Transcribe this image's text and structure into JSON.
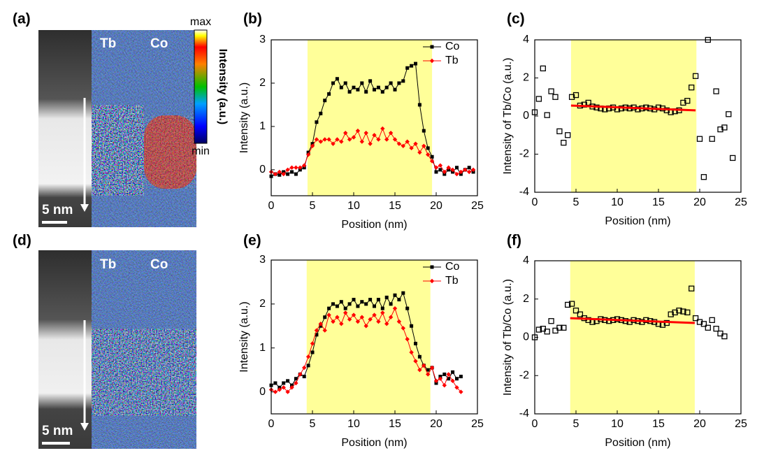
{
  "images": [
    {
      "label": "(a)",
      "maps": [
        "Tb",
        "Co"
      ],
      "scale": "5 nm"
    },
    {
      "label": "(d)",
      "maps": [
        "Tb",
        "Co"
      ],
      "scale": "5 nm"
    }
  ],
  "colorbar": {
    "max": "max",
    "min": "min",
    "title": "Intensity (a.u.)"
  },
  "chart_data": [
    {
      "type": "line",
      "panel": "(b)",
      "xlabel": "Position (nm)",
      "ylabel": "Intensity (a.u.)",
      "xlim": [
        0,
        25
      ],
      "xticks": [
        0,
        5,
        10,
        15,
        20,
        25
      ],
      "ylim": [
        -0.6,
        3
      ],
      "yticks": [
        0,
        1,
        2,
        3
      ],
      "highlight": {
        "x": [
          4.4,
          19.5
        ],
        "color": "#ffff99"
      },
      "legend": "upper right",
      "x": [
        0,
        0.5,
        1,
        1.5,
        2,
        2.5,
        3,
        3.5,
        4,
        4.5,
        5,
        5.5,
        6,
        6.5,
        7,
        7.5,
        8,
        8.5,
        9,
        9.5,
        10,
        10.5,
        11,
        11.5,
        12,
        12.5,
        13,
        13.5,
        14,
        14.5,
        15,
        15.5,
        16,
        16.5,
        17,
        17.5,
        18,
        18.5,
        19,
        19.5,
        20,
        20.5,
        21,
        21.5,
        22,
        22.5,
        23,
        23.5,
        24,
        24.5
      ],
      "series": [
        {
          "name": "Co",
          "color": "#000000",
          "marker": "square",
          "values": [
            -0.15,
            -0.1,
            -0.12,
            -0.05,
            -0.1,
            -0.05,
            -0.1,
            0,
            0.05,
            0.4,
            0.6,
            1.1,
            1.3,
            1.6,
            1.75,
            2.0,
            2.1,
            1.9,
            2.0,
            1.8,
            1.9,
            1.85,
            2.0,
            1.8,
            2.05,
            1.85,
            1.9,
            1.8,
            1.9,
            2.0,
            1.85,
            2.0,
            2.05,
            2.35,
            2.4,
            2.45,
            1.5,
            0.9,
            0.5,
            0.3,
            -0.05,
            0,
            -0.1,
            0,
            -0.05,
            0.05,
            -0.1,
            0,
            0.05,
            -0.05
          ]
        },
        {
          "name": "Tb",
          "color": "#ff0000",
          "marker": "diamond",
          "values": [
            -0.05,
            -0.1,
            -0.05,
            -0.1,
            0,
            0.05,
            0.05,
            0.05,
            0.1,
            0.35,
            0.55,
            0.7,
            0.65,
            0.7,
            0.7,
            0.6,
            0.7,
            0.65,
            0.85,
            0.7,
            0.75,
            0.9,
            0.65,
            0.85,
            0.6,
            0.8,
            0.7,
            0.95,
            0.7,
            0.85,
            0.7,
            0.6,
            0.55,
            0.65,
            0.5,
            0.6,
            0.4,
            0.55,
            0.35,
            0.2,
            0.05,
            0.1,
            -0.05,
            0.05,
            0,
            -0.1,
            -0.05,
            0,
            -0.05,
            0
          ]
        }
      ]
    },
    {
      "type": "scatter",
      "panel": "(c)",
      "xlabel": "Position (nm)",
      "ylabel": "Intensity of Tb/Co (a.u.)",
      "xlim": [
        0,
        25
      ],
      "xticks": [
        0,
        5,
        10,
        15,
        20,
        25
      ],
      "ylim": [
        -4,
        4
      ],
      "yticks": [
        -4,
        -2,
        0,
        2,
        4
      ],
      "highlight": {
        "x": [
          4.4,
          19.6
        ],
        "color": "#ffff99"
      },
      "x": [
        0,
        0.5,
        1,
        1.5,
        2,
        2.5,
        3,
        3.5,
        4,
        4.5,
        5,
        5.5,
        6,
        6.5,
        7,
        7.5,
        8,
        8.5,
        9,
        9.5,
        10,
        10.5,
        11,
        11.5,
        12,
        12.5,
        13,
        13.5,
        14,
        14.5,
        15,
        15.5,
        16,
        16.5,
        17,
        17.5,
        18,
        18.5,
        19,
        19.5,
        20,
        20.5,
        21,
        21.5,
        22,
        22.5,
        23,
        23.5,
        24
      ],
      "series": [
        {
          "color": "#000000",
          "marker": "open-square",
          "values": [
            0.2,
            0.9,
            2.5,
            0.05,
            1.3,
            1.0,
            -0.8,
            -1.4,
            -1.0,
            1.0,
            1.1,
            0.55,
            0.6,
            0.7,
            0.5,
            0.45,
            0.4,
            0.35,
            0.4,
            0.45,
            0.35,
            0.4,
            0.45,
            0.4,
            0.45,
            0.35,
            0.4,
            0.45,
            0.4,
            0.35,
            0.45,
            0.4,
            0.3,
            0.2,
            0.25,
            0.3,
            0.7,
            0.8,
            1.5,
            2.1,
            -1.2,
            -3.2,
            4.0,
            -1.2,
            1.3,
            -0.7,
            -0.6,
            0.1,
            -2.2
          ]
        }
      ],
      "fit": {
        "x": [
          4.4,
          19.5
        ],
        "y": [
          0.55,
          0.3
        ],
        "color": "#ff0000"
      }
    },
    {
      "type": "line",
      "panel": "(e)",
      "xlabel": "Position (nm)",
      "ylabel": "Intensity (a.u.)",
      "xlim": [
        0,
        25
      ],
      "xticks": [
        0,
        5,
        10,
        15,
        20,
        25
      ],
      "ylim": [
        -0.5,
        3
      ],
      "yticks": [
        0,
        1,
        2,
        3
      ],
      "highlight": {
        "x": [
          4.3,
          19.3
        ],
        "color": "#ffff99"
      },
      "legend": "upper right",
      "x": [
        0,
        0.5,
        1,
        1.5,
        2,
        2.5,
        3,
        3.5,
        4,
        4.5,
        5,
        5.5,
        6,
        6.5,
        7,
        7.5,
        8,
        8.5,
        9,
        9.5,
        10,
        10.5,
        11,
        11.5,
        12,
        12.5,
        13,
        13.5,
        14,
        14.5,
        15,
        15.5,
        16,
        16.5,
        17,
        17.5,
        18,
        18.5,
        19,
        19.5,
        20,
        20.5,
        21,
        21.5,
        22,
        22.5,
        23
      ],
      "series": [
        {
          "name": "Co",
          "color": "#000000",
          "marker": "square",
          "values": [
            0.15,
            0.2,
            0.1,
            0.2,
            0.25,
            0.15,
            0.3,
            0.4,
            0.35,
            0.6,
            0.9,
            1.3,
            1.5,
            1.7,
            1.9,
            2.0,
            1.95,
            2.05,
            1.9,
            2.0,
            2.1,
            1.95,
            2.05,
            2.0,
            2.1,
            1.95,
            2.1,
            1.9,
            2.15,
            2.0,
            2.2,
            2.1,
            2.25,
            1.9,
            1.5,
            1.1,
            0.8,
            0.6,
            0.5,
            0.55,
            0.2,
            0.35,
            0.4,
            0.3,
            0.45,
            0.3,
            0.35
          ]
        },
        {
          "name": "Tb",
          "color": "#ff0000",
          "marker": "diamond",
          "values": [
            0.05,
            0.0,
            0.05,
            0.1,
            0.0,
            0.1,
            0.2,
            0.4,
            0.55,
            0.8,
            1.1,
            1.4,
            1.55,
            1.4,
            1.75,
            1.6,
            1.7,
            1.55,
            1.8,
            1.65,
            1.75,
            1.6,
            1.7,
            1.5,
            1.65,
            1.75,
            1.6,
            1.8,
            1.55,
            1.7,
            1.9,
            1.6,
            1.45,
            1.2,
            0.9,
            0.7,
            0.5,
            0.6,
            0.4,
            0.55,
            0.25,
            0.3,
            0.15,
            0.4,
            0.25,
            0.1,
            0.0
          ]
        }
      ]
    },
    {
      "type": "scatter",
      "panel": "(f)",
      "xlabel": "Position (nm)",
      "ylabel": "Intensity of Tb/Co (a.u.)",
      "xlim": [
        0,
        25
      ],
      "xticks": [
        0,
        5,
        10,
        15,
        20,
        25
      ],
      "ylim": [
        -4,
        4
      ],
      "yticks": [
        -4,
        -2,
        0,
        2,
        4
      ],
      "highlight": {
        "x": [
          4.3,
          19.4
        ],
        "color": "#ffff99"
      },
      "x": [
        0,
        0.5,
        1,
        1.5,
        2,
        2.5,
        3,
        3.5,
        4,
        4.5,
        5,
        5.5,
        6,
        6.5,
        7,
        7.5,
        8,
        8.5,
        9,
        9.5,
        10,
        10.5,
        11,
        11.5,
        12,
        12.5,
        13,
        13.5,
        14,
        14.5,
        15,
        15.5,
        16,
        16.5,
        17,
        17.5,
        18,
        18.5,
        19,
        19.5,
        20,
        20.5,
        21,
        21.5,
        22,
        22.5,
        23
      ],
      "series": [
        {
          "color": "#000000",
          "marker": "open-square",
          "values": [
            0.0,
            0.4,
            0.45,
            0.3,
            0.85,
            0.35,
            0.5,
            0.5,
            1.7,
            1.75,
            1.4,
            1.2,
            1.0,
            0.9,
            0.8,
            0.85,
            0.95,
            0.9,
            0.85,
            0.9,
            0.95,
            0.9,
            0.85,
            0.8,
            0.9,
            0.85,
            0.8,
            0.9,
            0.85,
            0.8,
            0.7,
            0.65,
            0.75,
            1.2,
            1.3,
            1.4,
            1.35,
            1.3,
            2.55,
            1.0,
            0.8,
            0.7,
            0.5,
            0.9,
            0.45,
            0.2,
            0.05
          ]
        }
      ],
      "fit": {
        "x": [
          4.3,
          19.4
        ],
        "y": [
          1.0,
          0.75
        ],
        "color": "#ff0000"
      }
    }
  ]
}
